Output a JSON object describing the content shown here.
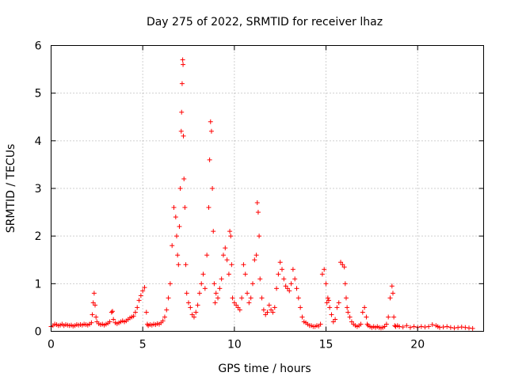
{
  "chart_data": {
    "type": "scatter",
    "title": "Day 275 of 2022, SRMTID for receiver lhaz",
    "xlabel": "GPS time / hours",
    "ylabel": "SRMTID / TECUs",
    "xlim": [
      0,
      23.6
    ],
    "ylim": [
      0,
      6
    ],
    "grid": true,
    "xticks": [
      0,
      5,
      10,
      15,
      20
    ],
    "yticks": [
      0,
      1,
      2,
      3,
      4,
      5,
      6
    ],
    "xtick_labels": [
      "0",
      "5",
      "10",
      "15",
      "20"
    ],
    "ytick_labels": [
      "0",
      "1",
      "2",
      "3",
      "4",
      "5",
      "6"
    ],
    "marker": "+",
    "color": "#ff0000",
    "series": [
      {
        "name": "SRMTID",
        "x": [
          0.0,
          0.1,
          0.2,
          0.3,
          0.4,
          0.5,
          0.6,
          0.7,
          0.8,
          0.9,
          1.0,
          1.1,
          1.2,
          1.3,
          1.4,
          1.5,
          1.6,
          1.7,
          1.8,
          1.9,
          2.0,
          2.1,
          2.2,
          2.25,
          2.3,
          2.35,
          2.4,
          2.45,
          2.5,
          2.6,
          2.7,
          2.8,
          2.9,
          3.0,
          3.1,
          3.2,
          3.3,
          3.35,
          3.4,
          3.5,
          3.6,
          3.7,
          3.8,
          3.9,
          4.0,
          4.1,
          4.2,
          4.3,
          4.4,
          4.5,
          4.6,
          4.7,
          4.8,
          4.9,
          5.0,
          5.1,
          5.2,
          5.25,
          5.3,
          5.4,
          5.5,
          5.6,
          5.7,
          5.8,
          5.9,
          6.0,
          6.1,
          6.2,
          6.3,
          6.4,
          6.5,
          6.6,
          6.7,
          6.8,
          6.85,
          6.9,
          6.95,
          7.0,
          7.05,
          7.1,
          7.12,
          7.15,
          7.18,
          7.2,
          7.22,
          7.25,
          7.3,
          7.35,
          7.4,
          7.5,
          7.6,
          7.7,
          7.8,
          7.9,
          8.0,
          8.1,
          8.2,
          8.3,
          8.4,
          8.5,
          8.6,
          8.65,
          8.7,
          8.75,
          8.8,
          8.85,
          8.9,
          8.95,
          9.0,
          9.1,
          9.2,
          9.3,
          9.4,
          9.5,
          9.6,
          9.7,
          9.75,
          9.8,
          9.85,
          9.9,
          10.0,
          10.1,
          10.2,
          10.3,
          10.4,
          10.5,
          10.6,
          10.7,
          10.8,
          10.9,
          11.0,
          11.1,
          11.2,
          11.25,
          11.3,
          11.35,
          11.4,
          11.5,
          11.6,
          11.7,
          11.8,
          11.9,
          12.0,
          12.1,
          12.2,
          12.3,
          12.4,
          12.5,
          12.6,
          12.7,
          12.8,
          12.9,
          13.0,
          13.1,
          13.2,
          13.3,
          13.4,
          13.5,
          13.6,
          13.7,
          13.8,
          13.9,
          14.0,
          14.1,
          14.2,
          14.3,
          14.4,
          14.5,
          14.6,
          14.7,
          14.8,
          14.9,
          15.0,
          15.05,
          15.1,
          15.15,
          15.2,
          15.3,
          15.4,
          15.5,
          15.6,
          15.7,
          15.8,
          15.9,
          16.0,
          16.05,
          16.1,
          16.15,
          16.2,
          16.3,
          16.4,
          16.5,
          16.6,
          16.7,
          16.8,
          16.9,
          17.0,
          17.1,
          17.2,
          17.25,
          17.3,
          17.4,
          17.5,
          17.6,
          17.7,
          17.8,
          17.9,
          18.0,
          18.1,
          18.2,
          18.3,
          18.4,
          18.5,
          18.6,
          18.65,
          18.7,
          18.75,
          18.8,
          18.9,
          19.0,
          19.2,
          19.4,
          19.6,
          19.8,
          20.0,
          20.2,
          20.4,
          20.6,
          20.8,
          21.0,
          21.1,
          21.2,
          21.4,
          21.6,
          21.8,
          22.0,
          22.2,
          22.4,
          22.6,
          22.8,
          23.0
        ],
        "y": [
          0.1,
          0.12,
          0.15,
          0.14,
          0.12,
          0.13,
          0.15,
          0.12,
          0.14,
          0.13,
          0.12,
          0.13,
          0.11,
          0.12,
          0.14,
          0.13,
          0.14,
          0.13,
          0.15,
          0.14,
          0.13,
          0.15,
          0.18,
          0.35,
          0.6,
          0.8,
          0.55,
          0.3,
          0.2,
          0.16,
          0.14,
          0.15,
          0.13,
          0.15,
          0.17,
          0.2,
          0.4,
          0.42,
          0.25,
          0.18,
          0.16,
          0.18,
          0.2,
          0.22,
          0.2,
          0.22,
          0.25,
          0.28,
          0.3,
          0.32,
          0.4,
          0.5,
          0.65,
          0.75,
          0.85,
          0.92,
          0.4,
          0.15,
          0.12,
          0.14,
          0.13,
          0.15,
          0.14,
          0.16,
          0.15,
          0.18,
          0.22,
          0.3,
          0.45,
          0.7,
          1.0,
          1.8,
          2.6,
          2.4,
          2.0,
          1.6,
          1.4,
          2.2,
          3.0,
          4.2,
          4.6,
          5.2,
          5.7,
          5.6,
          4.1,
          3.2,
          2.6,
          1.4,
          0.8,
          0.6,
          0.5,
          0.35,
          0.3,
          0.4,
          0.55,
          0.8,
          1.0,
          1.2,
          0.9,
          1.6,
          2.6,
          3.6,
          4.4,
          4.2,
          3.0,
          2.1,
          1.0,
          0.6,
          0.8,
          0.7,
          0.9,
          1.1,
          1.6,
          1.75,
          1.5,
          1.2,
          2.1,
          2.0,
          1.4,
          0.7,
          0.6,
          0.55,
          0.5,
          0.45,
          0.7,
          1.4,
          1.2,
          0.8,
          0.6,
          0.7,
          1.0,
          1.5,
          1.6,
          2.7,
          2.5,
          2.0,
          1.1,
          0.7,
          0.45,
          0.35,
          0.4,
          0.55,
          0.45,
          0.4,
          0.5,
          0.9,
          1.2,
          1.45,
          1.3,
          1.1,
          0.95,
          0.9,
          0.85,
          1.0,
          1.3,
          1.1,
          0.9,
          0.7,
          0.5,
          0.3,
          0.2,
          0.18,
          0.15,
          0.12,
          0.12,
          0.1,
          0.1,
          0.12,
          0.11,
          0.15,
          1.2,
          1.3,
          1.0,
          0.6,
          0.7,
          0.65,
          0.5,
          0.35,
          0.2,
          0.25,
          0.5,
          0.6,
          1.45,
          1.4,
          1.35,
          1.0,
          0.7,
          0.5,
          0.4,
          0.3,
          0.2,
          0.15,
          0.12,
          0.1,
          0.12,
          0.15,
          0.4,
          0.5,
          0.3,
          0.15,
          0.12,
          0.1,
          0.08,
          0.1,
          0.08,
          0.1,
          0.08,
          0.07,
          0.08,
          0.1,
          0.15,
          0.3,
          0.7,
          0.95,
          0.8,
          0.3,
          0.12,
          0.1,
          0.12,
          0.1,
          0.09,
          0.12,
          0.08,
          0.1,
          0.08,
          0.1,
          0.09,
          0.1,
          0.14,
          0.12,
          0.1,
          0.08,
          0.09,
          0.1,
          0.08,
          0.07,
          0.08,
          0.09,
          0.08,
          0.07,
          0.06
        ]
      }
    ]
  }
}
